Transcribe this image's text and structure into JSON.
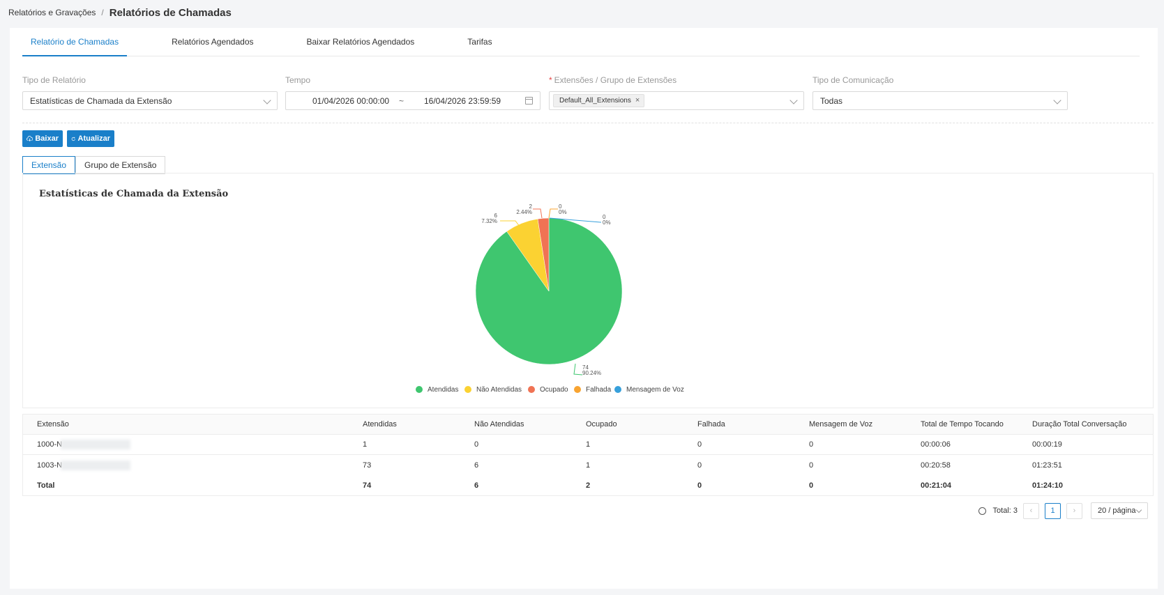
{
  "breadcrumb": {
    "parent": "Relatórios e Gravações",
    "separator": "/",
    "current": "Relatórios de Chamadas"
  },
  "tabs": [
    {
      "label": "Relatório de Chamadas",
      "active": true
    },
    {
      "label": "Relatórios Agendados",
      "active": false
    },
    {
      "label": "Baixar Relatórios Agendados",
      "active": false
    },
    {
      "label": "Tarifas",
      "active": false
    }
  ],
  "filters": {
    "report_type": {
      "label": "Tipo de Relatório",
      "value": "Estatísticas de Chamada da Extensão"
    },
    "time": {
      "label": "Tempo",
      "start": "01/04/2026 00:00:00",
      "separator": "~",
      "end": "16/04/2026 23:59:59"
    },
    "extensions": {
      "required_mark": "*",
      "label": "Extensões / Grupo de Extensões",
      "tag": "Default_All_Extensions",
      "tag_close": "×"
    },
    "communication": {
      "label": "Tipo de Comunicação",
      "value": "Todas"
    }
  },
  "actions": {
    "download": "Baixar",
    "refresh": "Atualizar"
  },
  "sub_tabs": [
    {
      "label": "Extensão",
      "active": true
    },
    {
      "label": "Grupo de Extensão",
      "active": false
    }
  ],
  "chart_data": {
    "type": "pie",
    "title": "Estatísticas de Chamada da Extensão",
    "slices": [
      {
        "name": "Atendidas",
        "value": 74,
        "percent": "90.24%",
        "color": "#3fc66f"
      },
      {
        "name": "Não Atendidas",
        "value": 6,
        "percent": "7.32%",
        "color": "#fbd232"
      },
      {
        "name": "Ocupado",
        "value": 2,
        "percent": "2.44%",
        "color": "#f07354"
      },
      {
        "name": "Falhada",
        "value": 0,
        "percent": "0%",
        "color": "#f8a431"
      },
      {
        "name": "Mensagem de Voz",
        "value": 0,
        "percent": "0%",
        "color": "#37a0db"
      }
    ],
    "legend": "bottom-center"
  },
  "table": {
    "columns": [
      "Extensão",
      "Atendidas",
      "Não Atendidas",
      "Ocupado",
      "Falhada",
      "Mensagem de Voz",
      "Total de Tempo Tocando",
      "Duração Total Conversação"
    ],
    "rows": [
      [
        "1000-N",
        "1",
        "0",
        "1",
        "0",
        "0",
        "00:00:06",
        "00:00:19"
      ],
      [
        "1003-N",
        "73",
        "6",
        "1",
        "0",
        "0",
        "00:20:58",
        "01:23:51"
      ]
    ],
    "total": [
      "Total",
      "74",
      "6",
      "2",
      "0",
      "0",
      "00:21:04",
      "01:24:10"
    ]
  },
  "pagination": {
    "total_label": "Total: 3",
    "prev": "‹",
    "page": "1",
    "next": "›",
    "page_size": "20 / página"
  }
}
